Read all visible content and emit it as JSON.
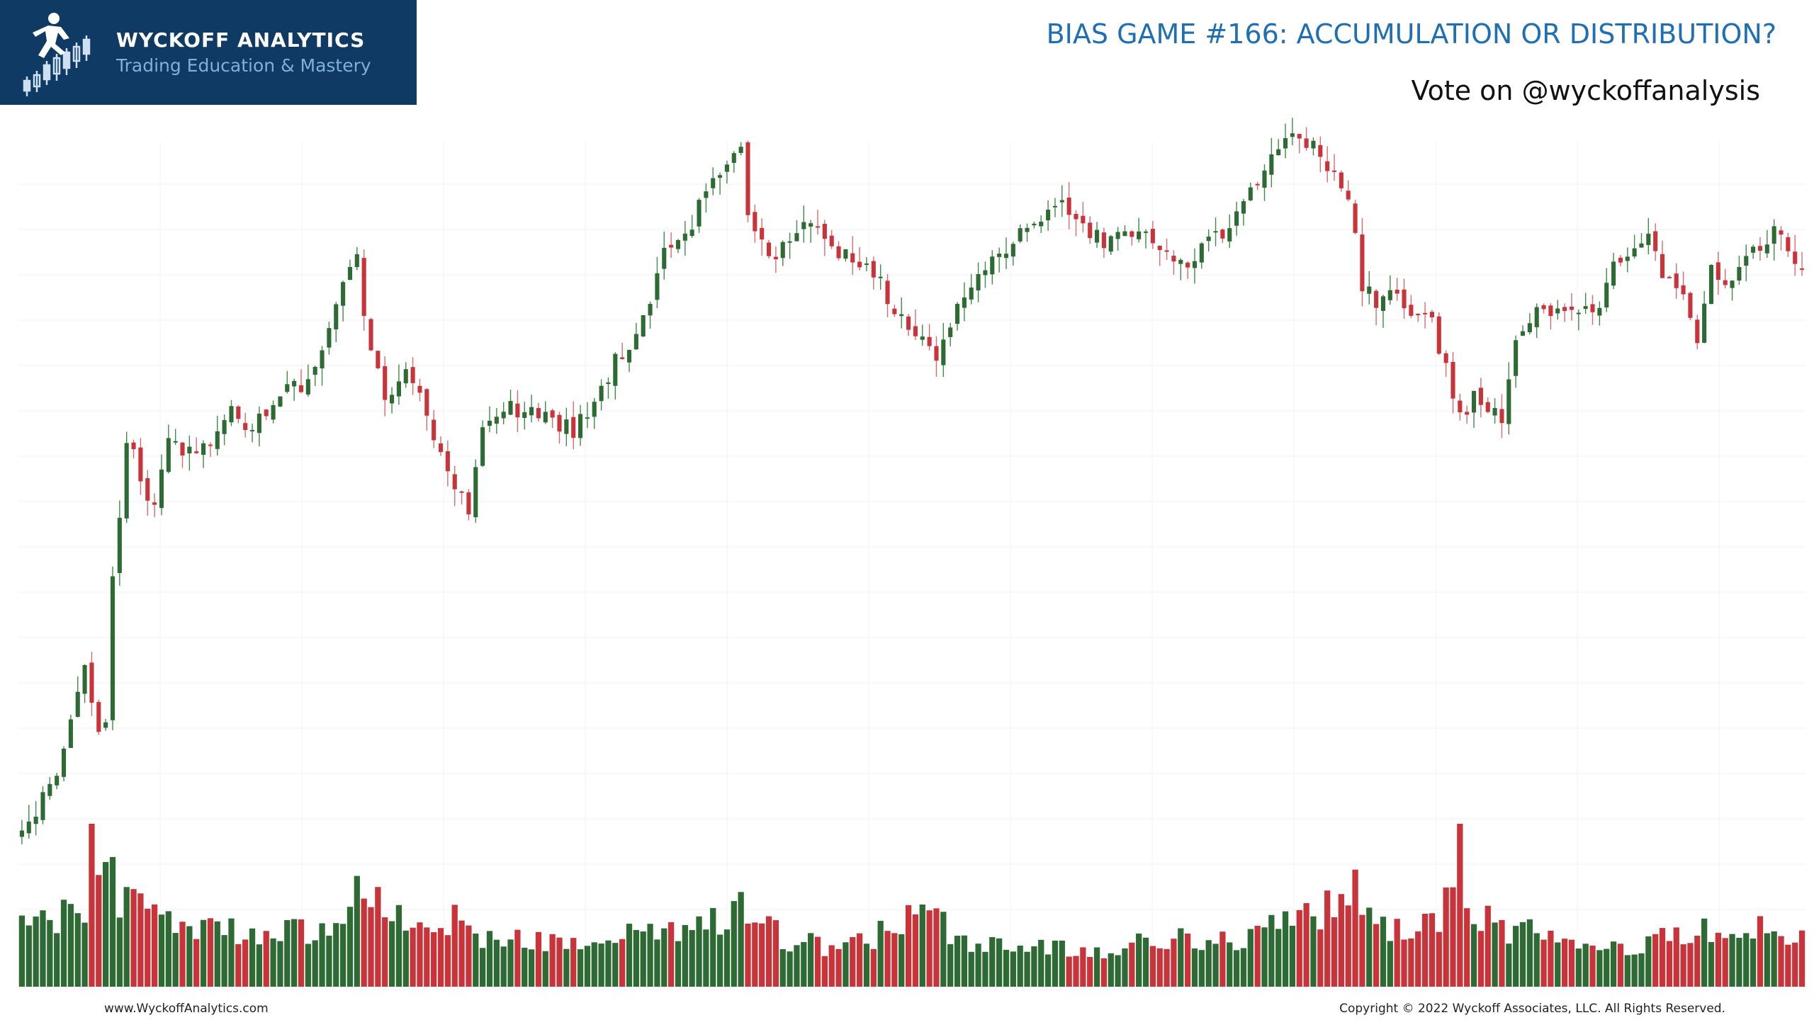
{
  "brand": {
    "name": "WYCKOFF ANALYTICS",
    "tagline": "Trading Education & Mastery"
  },
  "header": {
    "title": "BIAS GAME #166: ACCUMULATION OR DISTRIBUTION?",
    "subtitle": "Vote on @wyckoffanalysis"
  },
  "footer": {
    "website": "www.WyckoffAnalytics.com",
    "copyright": "Copyright © 2022 Wyckoff Associates, LLC. All Rights Reserved."
  },
  "colors": {
    "up": "#2e6b34",
    "down": "#c8343a",
    "brand_bg": "#0f3a63",
    "title": "#1f6fb2"
  },
  "chart_data": {
    "type": "candlestick",
    "title": "",
    "xlabel": "",
    "ylabel": "",
    "grid": true,
    "legend": "none",
    "price_ylim": [
      0,
      100
    ],
    "volume_ylim": [
      0,
      100
    ],
    "anchors": [
      [
        0,
        6
      ],
      [
        5,
        18
      ],
      [
        8,
        30
      ],
      [
        9,
        35
      ],
      [
        11,
        24
      ],
      [
        12,
        27
      ],
      [
        13,
        50
      ],
      [
        15,
        74
      ],
      [
        17,
        69
      ],
      [
        19,
        62
      ],
      [
        21,
        74
      ],
      [
        25,
        72
      ],
      [
        30,
        79
      ],
      [
        33,
        77
      ],
      [
        37,
        83
      ],
      [
        40,
        84
      ],
      [
        43,
        90
      ],
      [
        46,
        102
      ],
      [
        48,
        106
      ],
      [
        50,
        89
      ],
      [
        52,
        82
      ],
      [
        55,
        87
      ],
      [
        58,
        79
      ],
      [
        60,
        72
      ],
      [
        62,
        67
      ],
      [
        64,
        62
      ],
      [
        66,
        77
      ],
      [
        70,
        80
      ],
      [
        73,
        80
      ],
      [
        76,
        78
      ],
      [
        79,
        76
      ],
      [
        82,
        82
      ],
      [
        85,
        88
      ],
      [
        89,
        95
      ],
      [
        92,
        107
      ],
      [
        95,
        109
      ],
      [
        99,
        121
      ],
      [
        102,
        124
      ],
      [
        103,
        126
      ],
      [
        104,
        113
      ],
      [
        107,
        106
      ],
      [
        111,
        111
      ],
      [
        114,
        112
      ],
      [
        116,
        107
      ],
      [
        119,
        107
      ],
      [
        122,
        104
      ],
      [
        125,
        97
      ],
      [
        128,
        92
      ],
      [
        131,
        89
      ],
      [
        134,
        99
      ],
      [
        137,
        103
      ],
      [
        140,
        107
      ],
      [
        143,
        110
      ],
      [
        146,
        114
      ],
      [
        149,
        115
      ],
      [
        152,
        112
      ],
      [
        155,
        109
      ],
      [
        158,
        110
      ],
      [
        161,
        111
      ],
      [
        164,
        108
      ],
      [
        167,
        105
      ],
      [
        170,
        109
      ],
      [
        173,
        111
      ],
      [
        176,
        117
      ],
      [
        179,
        123
      ],
      [
        182,
        128
      ],
      [
        183,
        127
      ],
      [
        186,
        125
      ],
      [
        188,
        120
      ],
      [
        190,
        116
      ],
      [
        192,
        102
      ],
      [
        194,
        99
      ],
      [
        197,
        101
      ],
      [
        199,
        97
      ],
      [
        202,
        95
      ],
      [
        204,
        87
      ],
      [
        206,
        78
      ],
      [
        208,
        82
      ],
      [
        210,
        81
      ],
      [
        212,
        79
      ],
      [
        214,
        92
      ],
      [
        217,
        97
      ],
      [
        220,
        98
      ],
      [
        223,
        97
      ],
      [
        225,
        96
      ],
      [
        227,
        102
      ],
      [
        230,
        108
      ],
      [
        233,
        110
      ],
      [
        235,
        104
      ],
      [
        237,
        102
      ],
      [
        240,
        93
      ],
      [
        242,
        104
      ],
      [
        245,
        102
      ],
      [
        247,
        105
      ],
      [
        249,
        109
      ],
      [
        251,
        111
      ],
      [
        254,
        106
      ],
      [
        256,
        104
      ]
    ],
    "volume_profile": [
      [
        0,
        18
      ],
      [
        5,
        20
      ],
      [
        9,
        27
      ],
      [
        10,
        46
      ],
      [
        11,
        40
      ],
      [
        13,
        48
      ],
      [
        14,
        28
      ],
      [
        20,
        20
      ],
      [
        25,
        17
      ],
      [
        30,
        17
      ],
      [
        35,
        16
      ],
      [
        38,
        20
      ],
      [
        40,
        17
      ],
      [
        46,
        17
      ],
      [
        48,
        34
      ],
      [
        49,
        22
      ],
      [
        50,
        26
      ],
      [
        51,
        31
      ],
      [
        52,
        23
      ],
      [
        58,
        19
      ],
      [
        60,
        16
      ],
      [
        62,
        22
      ],
      [
        64,
        18
      ],
      [
        68,
        15
      ],
      [
        75,
        13
      ],
      [
        80,
        15
      ],
      [
        85,
        15
      ],
      [
        90,
        18
      ],
      [
        95,
        16
      ],
      [
        100,
        22
      ],
      [
        103,
        24
      ],
      [
        106,
        19
      ],
      [
        110,
        14
      ],
      [
        115,
        13
      ],
      [
        120,
        13
      ],
      [
        125,
        19
      ],
      [
        128,
        22
      ],
      [
        130,
        21
      ],
      [
        135,
        14
      ],
      [
        140,
        13
      ],
      [
        145,
        12
      ],
      [
        150,
        12
      ],
      [
        155,
        12
      ],
      [
        160,
        13
      ],
      [
        165,
        15
      ],
      [
        170,
        15
      ],
      [
        175,
        13
      ],
      [
        180,
        20
      ],
      [
        184,
        22
      ],
      [
        188,
        25
      ],
      [
        190,
        32
      ],
      [
        192,
        28
      ],
      [
        195,
        17
      ],
      [
        200,
        18
      ],
      [
        203,
        22
      ],
      [
        205,
        28
      ],
      [
        206,
        40
      ],
      [
        207,
        23
      ],
      [
        212,
        18
      ],
      [
        215,
        17
      ],
      [
        220,
        14
      ],
      [
        225,
        12
      ],
      [
        230,
        13
      ],
      [
        235,
        15
      ],
      [
        240,
        17
      ],
      [
        245,
        16
      ],
      [
        250,
        18
      ],
      [
        255,
        16
      ]
    ]
  }
}
